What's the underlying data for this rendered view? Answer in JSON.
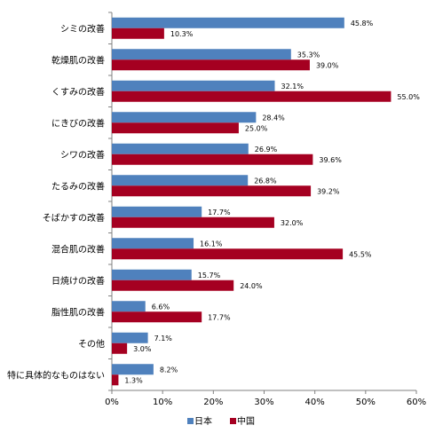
{
  "chart_data": {
    "type": "bar",
    "orientation": "horizontal",
    "categories": [
      "シミの改善",
      "乾燥肌の改善",
      "くすみの改善",
      "にきびの改善",
      "シワの改善",
      "たるみの改善",
      "そばかすの改善",
      "混合肌の改善",
      "日焼けの改善",
      "脂性肌の改善",
      "その他",
      "特に具体的なものはない"
    ],
    "series": [
      {
        "name": "日本",
        "color": "#4f81bd",
        "values": [
          45.8,
          35.3,
          32.1,
          28.4,
          26.9,
          26.8,
          17.7,
          16.1,
          15.7,
          6.6,
          7.1,
          8.2
        ],
        "labels": [
          "45.8%",
          "35.3%",
          "32.1%",
          "28.4%",
          "26.9%",
          "26.8%",
          "17.7%",
          "16.1%",
          "15.7%",
          "6.6%",
          "7.1%",
          "8.2%"
        ]
      },
      {
        "name": "中国",
        "color": "#a50021",
        "values": [
          10.3,
          39.0,
          55.0,
          25.0,
          39.6,
          39.2,
          32.0,
          45.5,
          24.0,
          17.7,
          3.0,
          1.3
        ],
        "labels": [
          "10.3%",
          "39.0%",
          "55.0%",
          "25.0%",
          "39.6%",
          "39.2%",
          "32.0%",
          "45.5%",
          "24.0%",
          "17.7%",
          "3.0%",
          "1.3%"
        ]
      }
    ],
    "xlim": [
      0,
      60
    ],
    "ticks": [
      0,
      10,
      20,
      30,
      40,
      50,
      60
    ],
    "tick_labels": [
      "0%",
      "10%",
      "20%",
      "30%",
      "40%",
      "50%",
      "60%"
    ],
    "legend_position": "bottom"
  }
}
